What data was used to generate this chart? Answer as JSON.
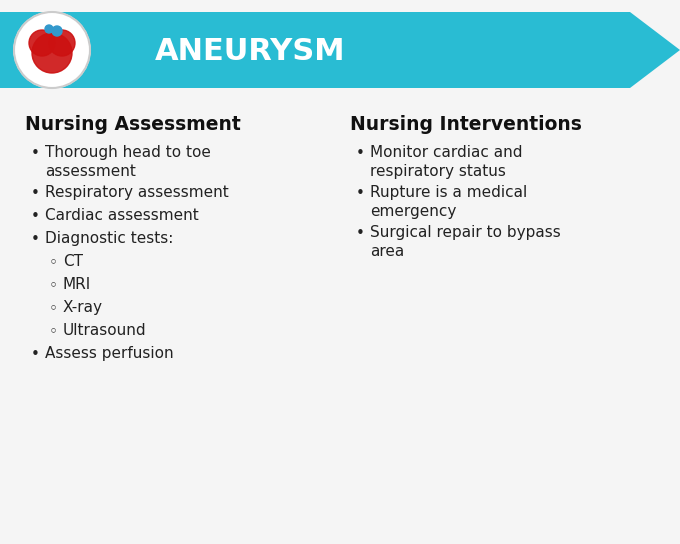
{
  "title": "ANEURYSM",
  "title_color": "#ffffff",
  "arrow_color": "#29bcd3",
  "bg_color": "#f5f5f5",
  "left_heading": "Nursing Assessment",
  "right_heading": "Nursing Interventions",
  "heading_color": "#111111",
  "text_color": "#222222",
  "left_bullets": [
    {
      "text": "Thorough head to toe\nassessment",
      "level": 1
    },
    {
      "text": "Respiratory assessment",
      "level": 1
    },
    {
      "text": "Cardiac assessment",
      "level": 1
    },
    {
      "text": "Diagnostic tests:",
      "level": 1
    },
    {
      "text": "CT",
      "level": 2
    },
    {
      "text": "MRI",
      "level": 2
    },
    {
      "text": "X-ray",
      "level": 2
    },
    {
      "text": "Ultrasound",
      "level": 2
    },
    {
      "text": "Assess perfusion",
      "level": 1
    }
  ],
  "right_bullets": [
    {
      "text": "Monitor cardiac and\nrespiratory status",
      "level": 1
    },
    {
      "text": "Rupture is a medical\nemergency",
      "level": 1
    },
    {
      "text": "Surgical repair to bypass\narea",
      "level": 1
    }
  ],
  "figw": 6.8,
  "figh": 5.44,
  "dpi": 100
}
